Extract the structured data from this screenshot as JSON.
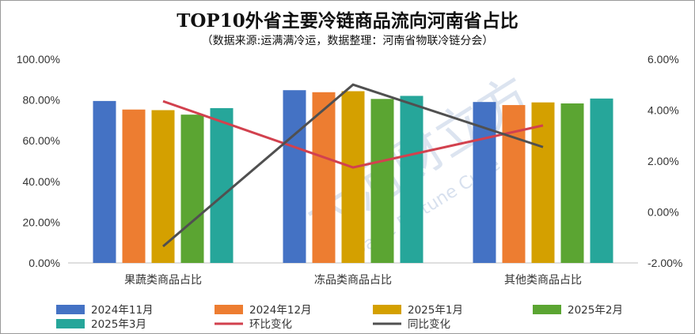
{
  "chart_data": {
    "type": "bar",
    "title": "TOP10外省主要冷链商品流向河南省占比",
    "subtitle": "（数据来源:运满满冷运，数据整理：河南省物联冷链分会）",
    "categories": [
      "果蔬类商品占比",
      "冻品类商品占比",
      "其他类商品占比"
    ],
    "y_left": {
      "ylim": [
        0,
        100
      ],
      "ticks": [
        "100.00%",
        "80.00%",
        "60.00%",
        "40.00%",
        "20.00%",
        "0.00%"
      ]
    },
    "y_right": {
      "ylim": [
        -2,
        6
      ],
      "ticks": [
        "6.00%",
        "4.00%",
        "2.00%",
        "0.00%",
        "-2.00%"
      ]
    },
    "series": [
      {
        "name": "2024年11月",
        "type": "bar",
        "color": "#4472C4",
        "values": [
          79.5,
          84.8,
          79.0
        ]
      },
      {
        "name": "2024年12月",
        "type": "bar",
        "color": "#ED7D31",
        "values": [
          75.3,
          83.8,
          77.5
        ]
      },
      {
        "name": "2025年1月",
        "type": "bar",
        "color": "#D4A000",
        "values": [
          75.0,
          84.3,
          78.8
        ]
      },
      {
        "name": "2025年2月",
        "type": "bar",
        "color": "#5BA532",
        "values": [
          72.8,
          80.5,
          78.3
        ]
      },
      {
        "name": "2025年3月",
        "type": "bar",
        "color": "#26A69A",
        "values": [
          76.0,
          82.0,
          80.7
        ]
      },
      {
        "name": "环比变化",
        "type": "line",
        "axis": "right",
        "color": "#D2414E",
        "values": [
          4.35,
          1.75,
          3.4
        ]
      },
      {
        "name": "同比变化",
        "type": "line",
        "axis": "right",
        "color": "#505050",
        "values": [
          -1.35,
          5.0,
          2.55
        ]
      }
    ],
    "legend_position": "bottom",
    "grid": false
  },
  "watermark": {
    "text": "大河财立方",
    "subtext": "DaHe Fortune Cube"
  }
}
